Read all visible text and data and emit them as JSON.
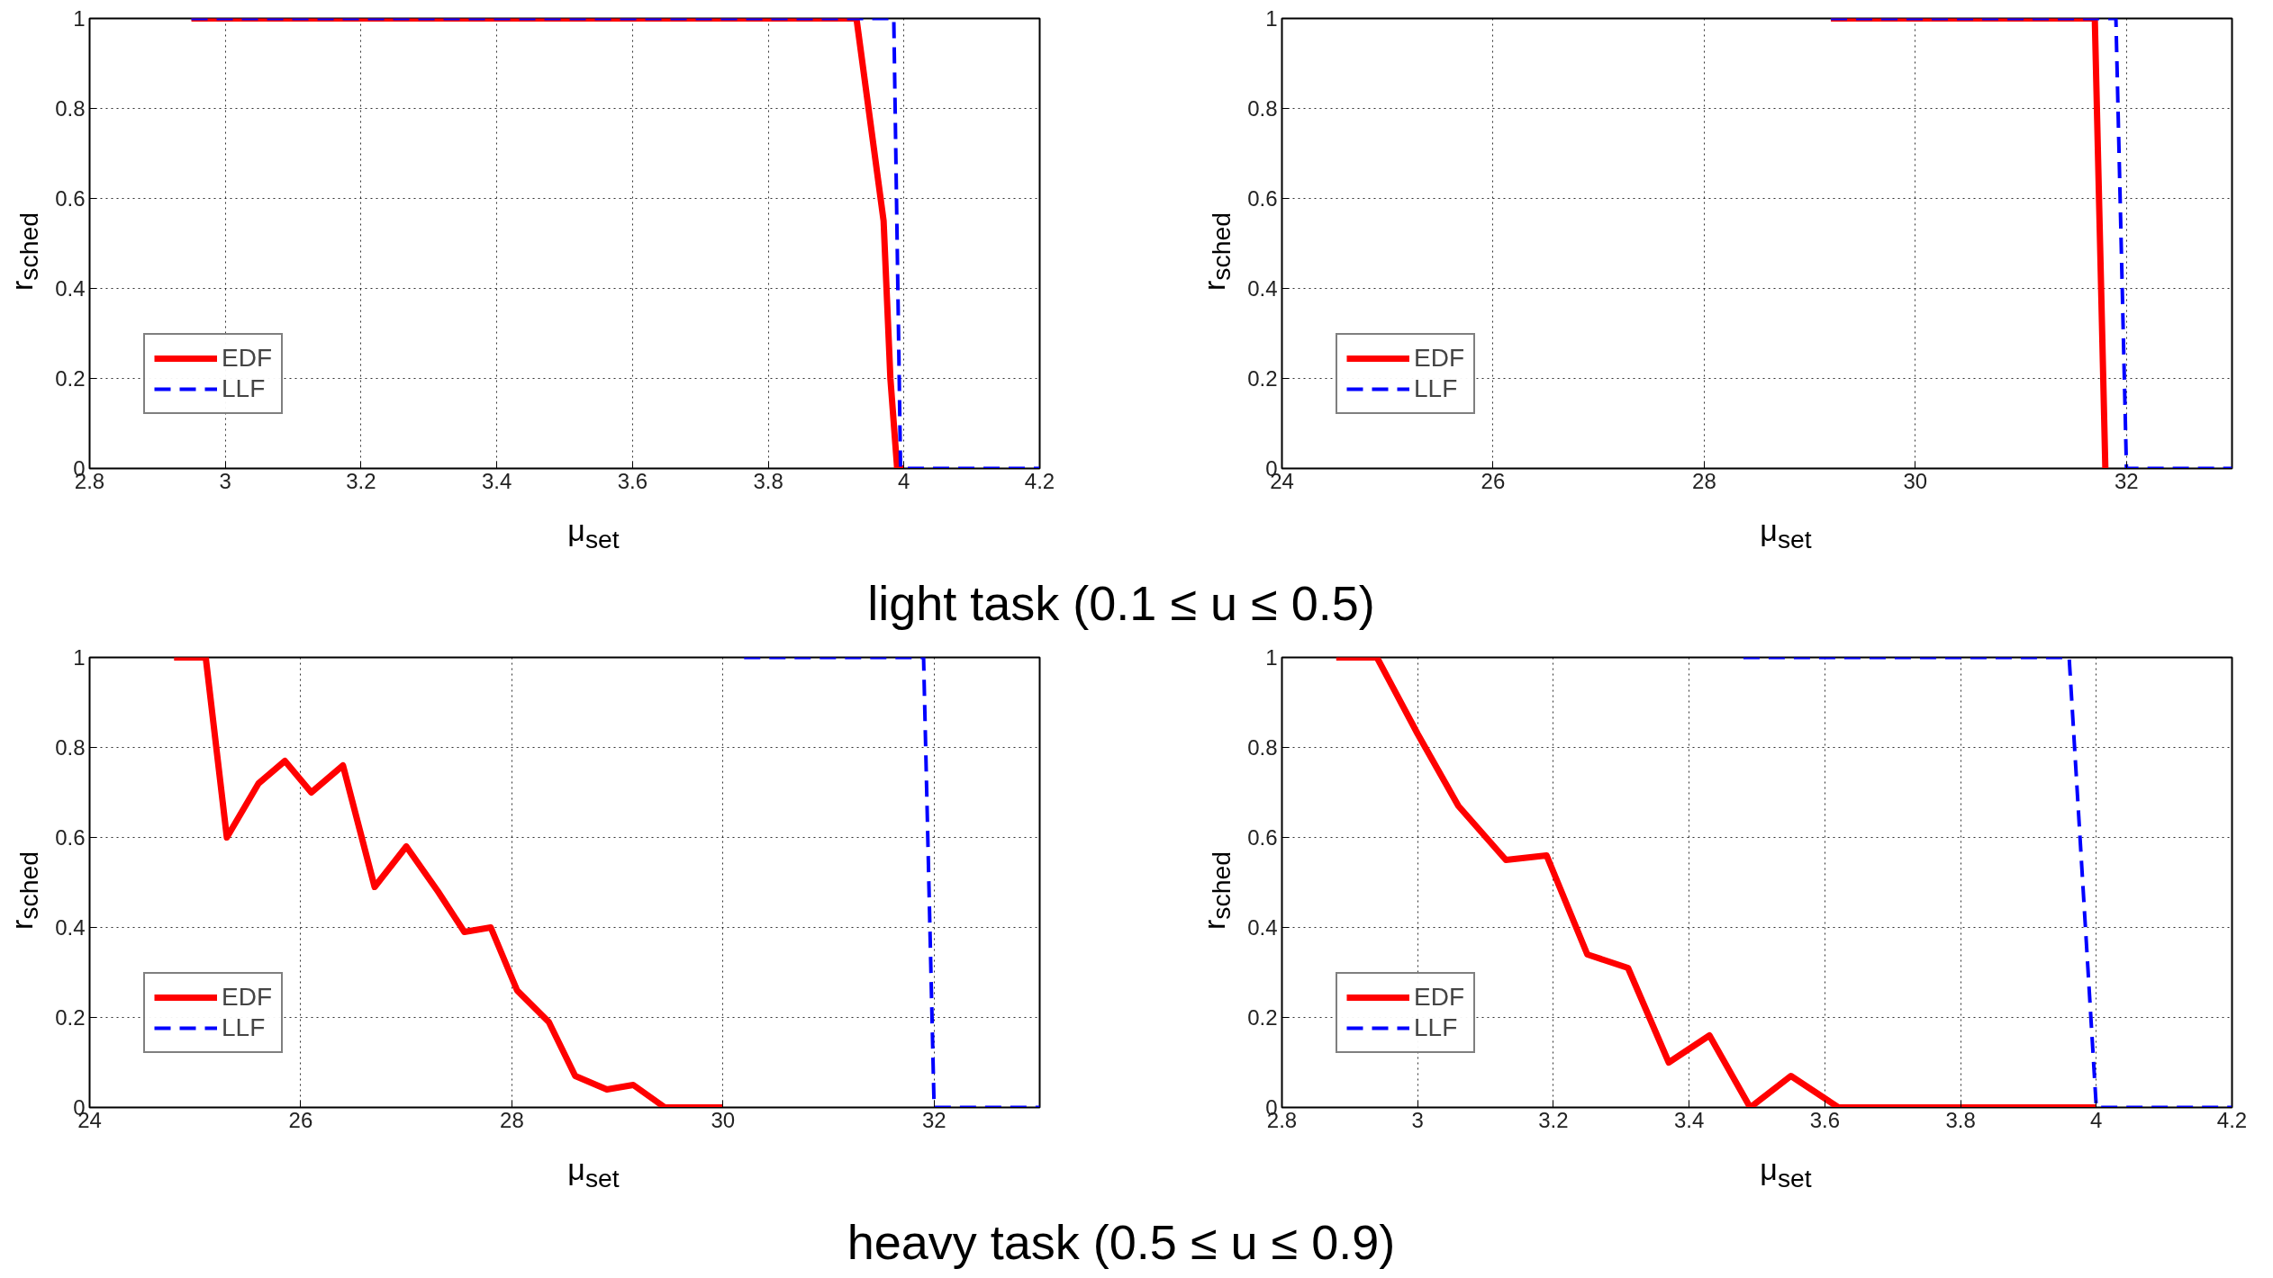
{
  "chart_data": [
    {
      "type": "line",
      "xlabel": "μ$_{set}$",
      "ylabel": "r$_{sched}$",
      "xlim": [
        2.8,
        4.2
      ],
      "xticks": [
        2.8,
        3,
        3.2,
        3.4,
        3.6,
        3.8,
        4,
        4.2
      ],
      "ylim": [
        0,
        1
      ],
      "yticks": [
        0,
        0.2,
        0.4,
        0.6,
        0.8,
        1
      ],
      "grid": true,
      "legend": "bottom left",
      "annotations": [
        "light task (0.1 ≤ u ≤ 0.5)"
      ],
      "series": [
        {
          "name": "EDF",
          "color": "#ff0000",
          "line_style": "solid",
          "x": [
            2.95,
            3.93,
            3.97,
            3.98,
            3.99,
            4.0
          ],
          "values": [
            1,
            1,
            0.55,
            0.2,
            0,
            0
          ]
        },
        {
          "name": "LLF",
          "color": "#0000ff",
          "line_style": "dashed",
          "x": [
            2.95,
            3.985,
            3.995,
            4.2
          ],
          "values": [
            1,
            1,
            0,
            0
          ]
        }
      ]
    },
    {
      "type": "line",
      "xlabel": "μ$_{set}$",
      "ylabel": "r$_{sched}$",
      "xlim": [
        24,
        33
      ],
      "xticks": [
        24,
        26,
        28,
        30,
        32
      ],
      "ylim": [
        0,
        1
      ],
      "yticks": [
        0,
        0.2,
        0.4,
        0.6,
        0.8,
        1
      ],
      "grid": true,
      "legend": "bottom left",
      "series": [
        {
          "name": "EDF",
          "color": "#ff0000",
          "line_style": "solid",
          "x": [
            29.2,
            31.7,
            31.75,
            31.8
          ],
          "values": [
            1,
            1,
            0.5,
            0
          ]
        },
        {
          "name": "LLF",
          "color": "#0000ff",
          "line_style": "dashed",
          "x": [
            29.2,
            31.9,
            32.0,
            33
          ],
          "values": [
            1,
            1,
            0,
            0
          ]
        }
      ]
    },
    {
      "type": "line",
      "xlabel": "μ$_{set}$",
      "ylabel": "r$_{sched}$",
      "xlim": [
        24,
        33
      ],
      "xticks": [
        24,
        26,
        28,
        30,
        32
      ],
      "ylim": [
        0,
        1
      ],
      "yticks": [
        0,
        0.2,
        0.4,
        0.6,
        0.8,
        1
      ],
      "grid": true,
      "legend": "bottom left",
      "annotations": [
        "heavy task (0.5 ≤ u ≤ 0.9)"
      ],
      "series": [
        {
          "name": "EDF",
          "color": "#ff0000",
          "line_style": "solid",
          "x": [
            24.8,
            25.1,
            25.3,
            25.6,
            25.85,
            26.1,
            26.4,
            26.7,
            27.0,
            27.3,
            27.55,
            27.8,
            28.05,
            28.35,
            28.6,
            28.9,
            29.15,
            29.45,
            30.0
          ],
          "values": [
            1,
            1,
            0.6,
            0.72,
            0.77,
            0.7,
            0.76,
            0.49,
            0.58,
            0.48,
            0.39,
            0.4,
            0.26,
            0.19,
            0.07,
            0.04,
            0.05,
            0,
            0
          ]
        },
        {
          "name": "LLF",
          "color": "#0000ff",
          "line_style": "dashed",
          "x": [
            30.2,
            31.9,
            32.0,
            33
          ],
          "values": [
            1,
            1,
            0,
            0
          ]
        }
      ]
    },
    {
      "type": "line",
      "xlabel": "μ$_{set}$",
      "ylabel": "r$_{sched}$",
      "xlim": [
        2.8,
        4.2
      ],
      "xticks": [
        2.8,
        3,
        3.2,
        3.4,
        3.6,
        3.8,
        4,
        4.2
      ],
      "ylim": [
        0,
        1
      ],
      "yticks": [
        0,
        0.2,
        0.4,
        0.6,
        0.8,
        1
      ],
      "grid": true,
      "legend": "bottom left",
      "series": [
        {
          "name": "EDF",
          "color": "#ff0000",
          "line_style": "solid",
          "x": [
            2.88,
            2.94,
            3.0,
            3.06,
            3.13,
            3.19,
            3.25,
            3.31,
            3.37,
            3.43,
            3.49,
            3.55,
            3.62,
            4.0
          ],
          "values": [
            1,
            1,
            0.83,
            0.67,
            0.55,
            0.56,
            0.34,
            0.31,
            0.1,
            0.16,
            0,
            0.07,
            0,
            0
          ]
        },
        {
          "name": "LLF",
          "color": "#0000ff",
          "line_style": "dashed",
          "x": [
            3.48,
            3.96,
            4.0,
            4.2
          ],
          "values": [
            1,
            1,
            0,
            0
          ]
        }
      ]
    }
  ]
}
